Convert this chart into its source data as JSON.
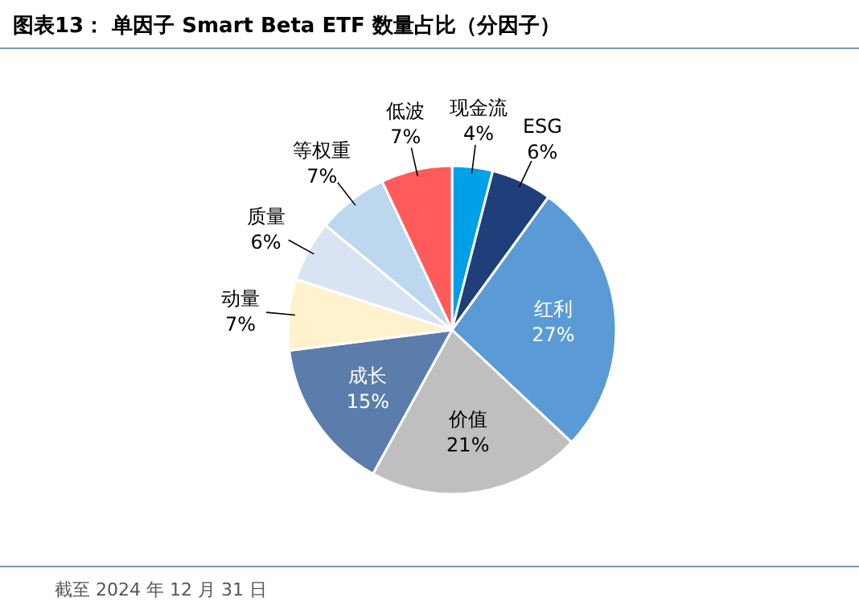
{
  "chart_data": {
    "type": "pie",
    "title": "图表13： 单因子 Smart Beta ETF 数量占比（分因子）",
    "categories": [
      "现金流",
      "ESG",
      "红利",
      "价值",
      "成长",
      "动量",
      "质量",
      "等权重",
      "低波"
    ],
    "values": [
      4,
      6,
      27,
      21,
      15,
      7,
      6,
      7,
      7
    ],
    "value_labels": [
      "4%",
      "6%",
      "27%",
      "21%",
      "15%",
      "7%",
      "6%",
      "7%",
      "7%"
    ],
    "colors": [
      "#00a0e9",
      "#1f3f7a",
      "#5b9bd5",
      "#bfbfbf",
      "#5a7dab",
      "#fff2cc",
      "#dae3f3",
      "#bdd7ee",
      "#ff5b5b"
    ],
    "annotations": [
      "截至 2024 年 12 月 31 日"
    ]
  }
}
